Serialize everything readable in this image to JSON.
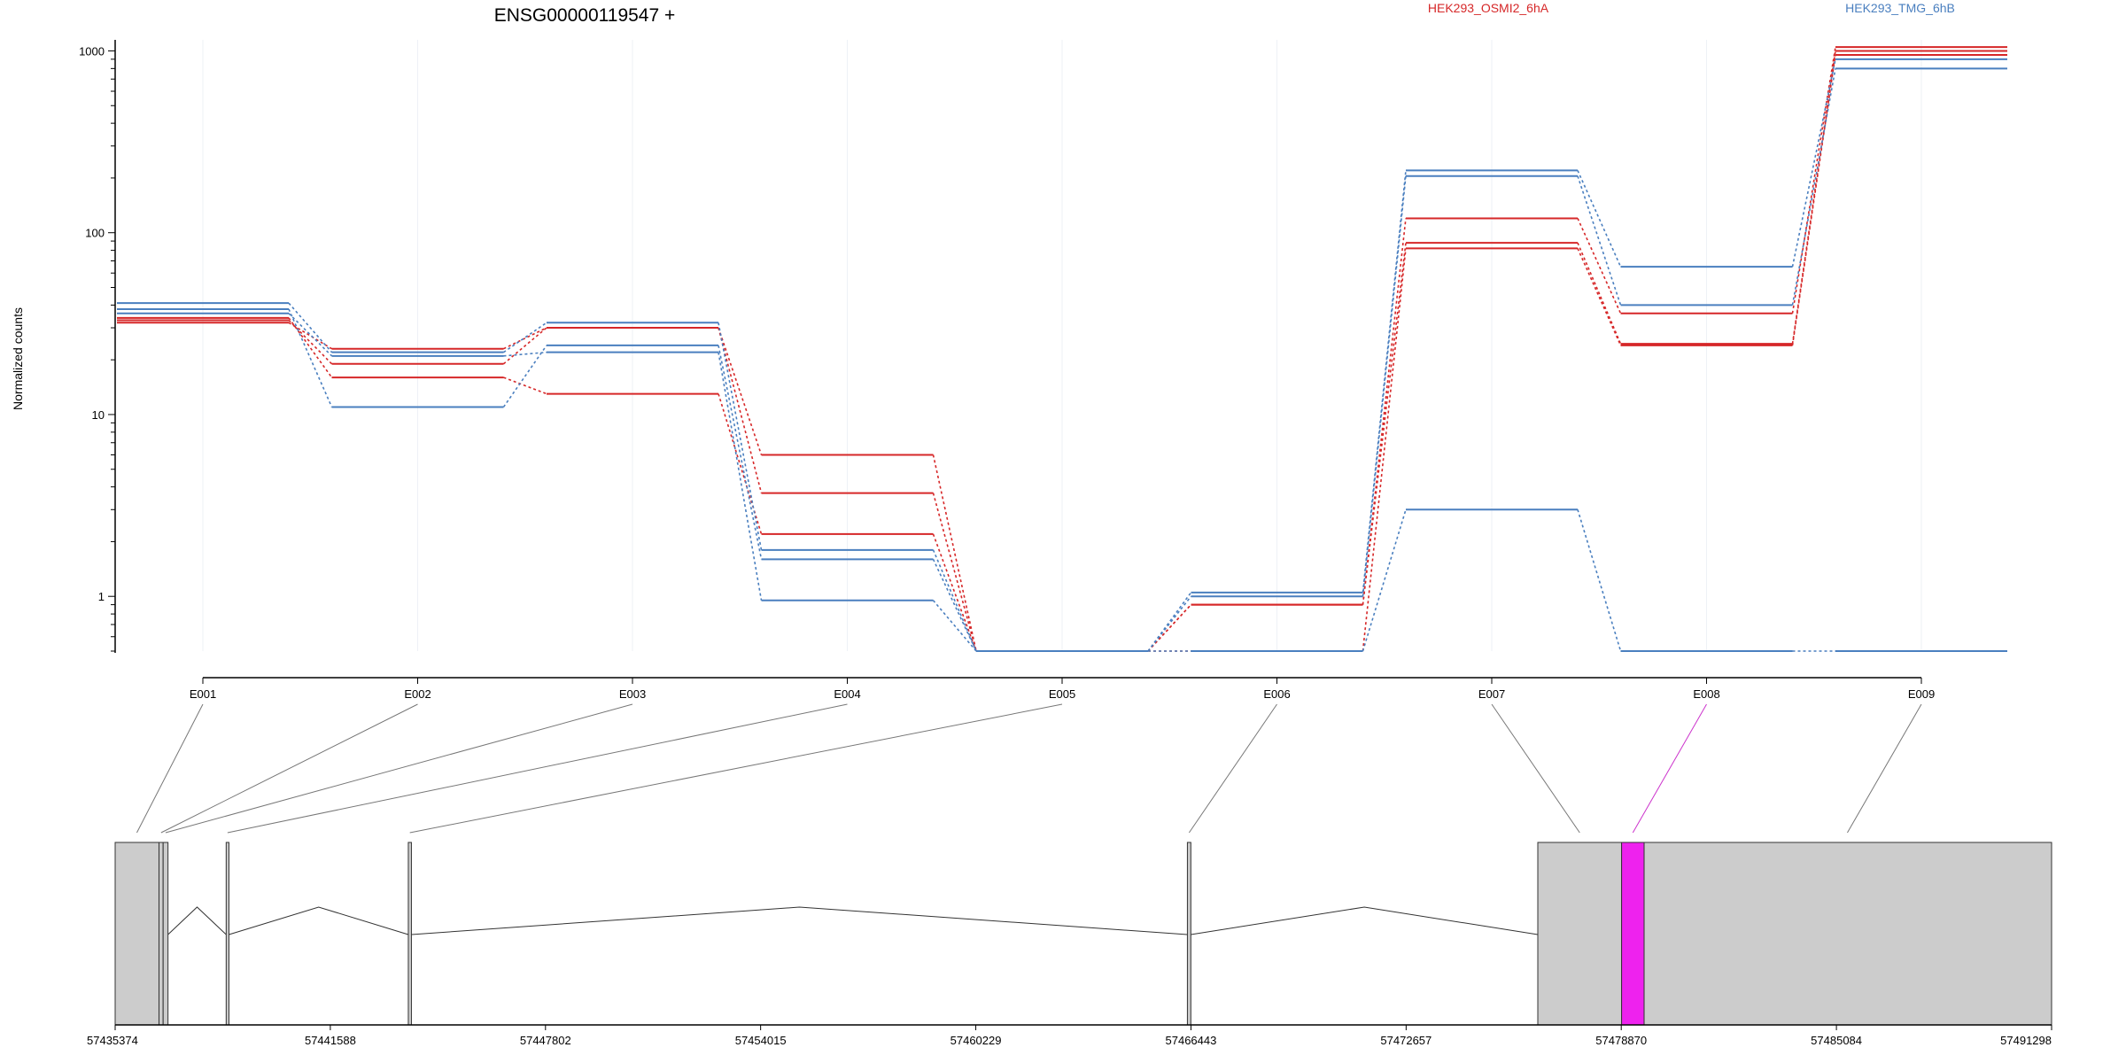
{
  "chart_data": {
    "type": "line",
    "title": "ENSG00000119547 +",
    "ylabel": "Normalized counts",
    "xlabel": "",
    "y_scale": "log",
    "ylim": [
      0.5,
      1150
    ],
    "y_ticks": [
      1,
      10,
      100,
      1000
    ],
    "y_tick_labels": [
      "1",
      "10",
      "100",
      "1000"
    ],
    "grid": "vertical-light",
    "legend_position": "top",
    "categories": [
      "E001",
      "E002",
      "E003",
      "E004",
      "E005",
      "E006",
      "E007",
      "E008",
      "E009"
    ],
    "highlighted_exon": "E008",
    "series": [
      {
        "name": "HEK293_OSMI2_6hA",
        "color": "#d62728",
        "values": [
          32,
          23,
          30,
          6,
          0.5,
          0.9,
          120,
          36,
          1050
        ]
      },
      {
        "name": "",
        "color": "#d62728",
        "values": [
          33,
          19,
          30,
          3.7,
          0.5,
          0.9,
          88,
          24.5,
          1000
        ]
      },
      {
        "name": "",
        "color": "#d62728",
        "values": [
          34,
          16,
          13,
          2.2,
          0.5,
          0.5,
          82,
          24,
          950
        ]
      },
      {
        "name": "HEK293_TMG_6hB",
        "color": "#4a7fbf",
        "values": [
          41,
          22,
          32,
          1.8,
          0.5,
          1.05,
          220,
          65,
          900
        ]
      },
      {
        "name": "",
        "color": "#4a7fbf",
        "values": [
          38,
          11,
          24,
          1.6,
          0.5,
          1.0,
          205,
          40,
          800
        ]
      },
      {
        "name": "",
        "color": "#4a7fbf",
        "values": [
          36,
          21,
          22,
          0.95,
          0.5,
          0.5,
          3,
          0.5,
          0.5
        ]
      }
    ],
    "genomic_axis": {
      "ticks": [
        57435374,
        57441588,
        57447802,
        57454015,
        57460229,
        57466443,
        57472657,
        57478870,
        57485084,
        57491298
      ],
      "tick_labels": [
        "57435374",
        "57441588",
        "57447802",
        "57454015",
        "57460229",
        "57466443",
        "57472657",
        "57478870",
        "57485084",
        "57491298"
      ],
      "range": [
        57435374,
        57491298
      ]
    },
    "gene_model": {
      "exons": [
        {
          "start": 57435374,
          "end": 57436640,
          "fill": "#cccccc",
          "label": "E001"
        },
        {
          "start": 57436640,
          "end": 57436760,
          "fill": "#cccccc",
          "label": "E002"
        },
        {
          "start": 57436760,
          "end": 57436900,
          "fill": "#cccccc",
          "label": "E003"
        },
        {
          "start": 57438580,
          "end": 57438660,
          "fill": "#cccccc",
          "label": "E004"
        },
        {
          "start": 57443840,
          "end": 57443930,
          "fill": "#cccccc",
          "label": "E005"
        },
        {
          "start": 57466340,
          "end": 57466440,
          "fill": "#cccccc",
          "label": "E006"
        },
        {
          "start": 57476460,
          "end": 57478880,
          "fill": "#cccccc",
          "label": "E007"
        },
        {
          "start": 57478880,
          "end": 57479530,
          "fill": "#ee22ee",
          "label": "E008"
        },
        {
          "start": 57479530,
          "end": 57491298,
          "fill": "#cccccc",
          "label": "E009"
        }
      ],
      "introns": [
        [
          57436900,
          57438580
        ],
        [
          57438660,
          57443840
        ],
        [
          57443930,
          57466340
        ],
        [
          57466440,
          57476460
        ]
      ]
    },
    "exon_connectors": [
      {
        "label": "E001",
        "target": 57436000,
        "color": "#777777"
      },
      {
        "label": "E002",
        "target": 57436700,
        "color": "#777777"
      },
      {
        "label": "E003",
        "target": 57436830,
        "color": "#777777"
      },
      {
        "label": "E004",
        "target": 57438620,
        "color": "#777777"
      },
      {
        "label": "E005",
        "target": 57443885,
        "color": "#777777"
      },
      {
        "label": "E006",
        "target": 57466390,
        "color": "#777777"
      },
      {
        "label": "E007",
        "target": 57477670,
        "color": "#777777"
      },
      {
        "label": "E008",
        "target": 57479205,
        "color": "#cc33cc"
      },
      {
        "label": "E009",
        "target": 57485400,
        "color": "#777777"
      }
    ]
  }
}
